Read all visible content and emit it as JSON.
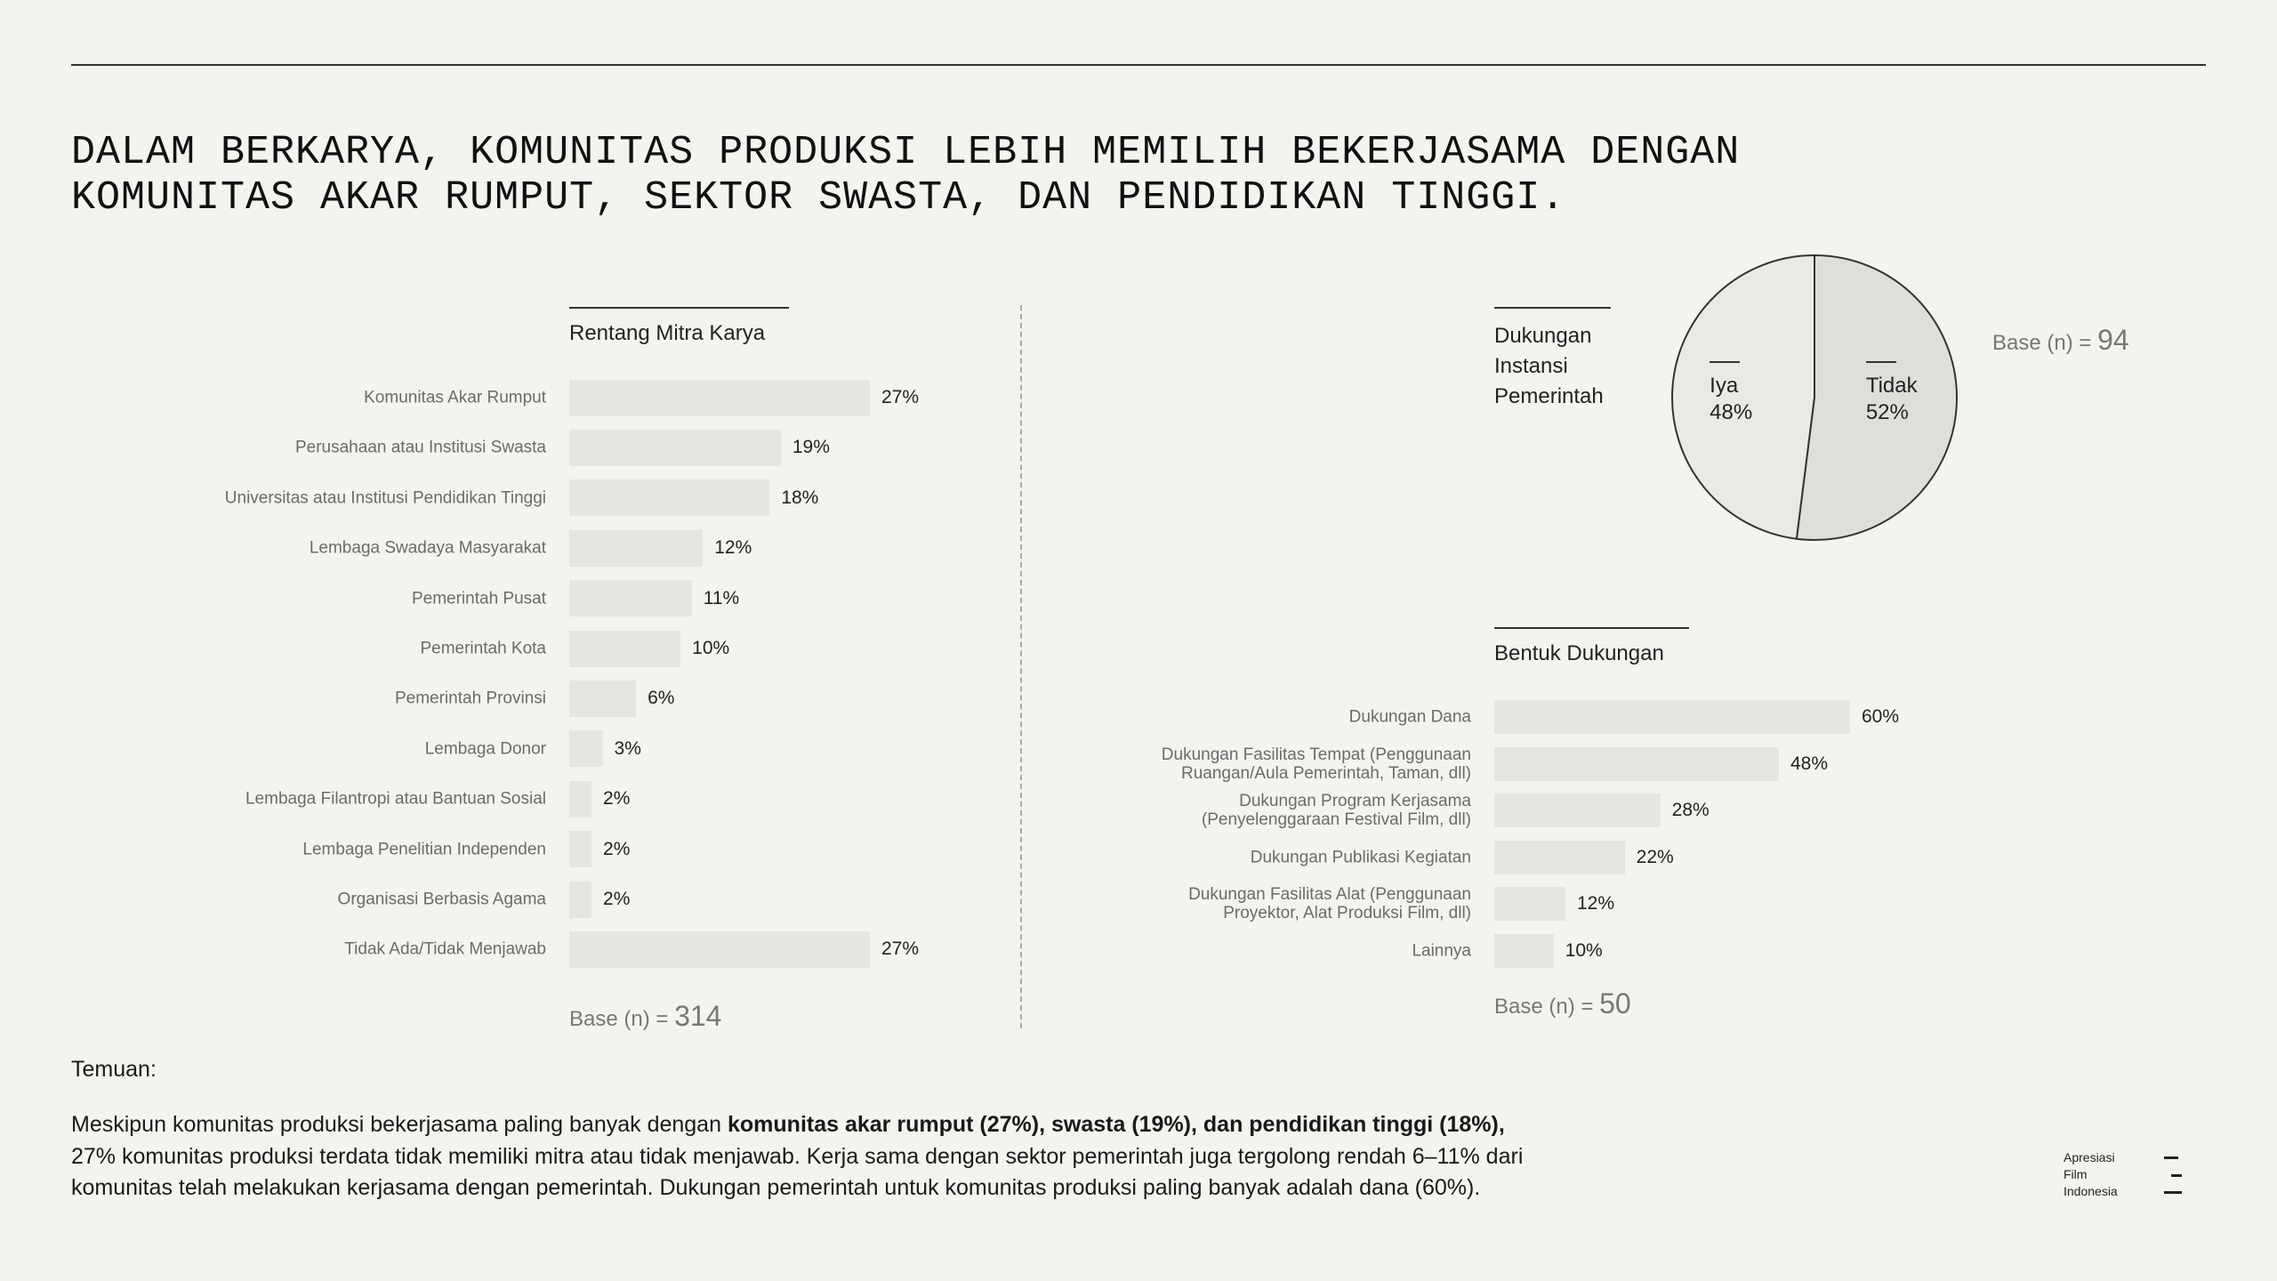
{
  "header": {
    "title": "DALAM BERKARYA, KOMUNITAS PRODUKSI LEBIH MEMILIH BEKERJASAMA DENGAN KOMUNITAS AKAR RUMPUT, SEKTOR SWASTA, DAN PENDIDIKAN TINGGI."
  },
  "chart_data": [
    {
      "type": "bar",
      "title": "Rentang Mitra Karya",
      "categories": [
        "Komunitas Akar Rumput",
        "Perusahaan atau Institusi Swasta",
        "Universitas atau Institusi Pendidikan Tinggi",
        "Lembaga Swadaya Masyarakat",
        "Pemerintah Pusat",
        "Pemerintah Kota",
        "Pemerintah Provinsi",
        "Lembaga Donor",
        "Lembaga Filantropi atau Bantuan Sosial",
        "Lembaga Penelitian Independen",
        "Organisasi Berbasis Agama",
        "Tidak Ada/Tidak Menjawab"
      ],
      "values": [
        27,
        19,
        18,
        12,
        11,
        10,
        6,
        3,
        2,
        2,
        2,
        27
      ],
      "value_labels": [
        "27%",
        "19%",
        "18%",
        "12%",
        "11%",
        "10%",
        "6%",
        "3%",
        "2%",
        "2%",
        "2%",
        "27%"
      ],
      "color": "#e5e5e1",
      "base_label": "Base (n) =",
      "base_n": 314
    },
    {
      "type": "pie",
      "title": "Dukungan Instansi Pemerintah",
      "categories": [
        "Iya",
        "Tidak"
      ],
      "values": [
        48,
        52
      ],
      "value_labels": [
        "48%",
        "52%"
      ],
      "colors": [
        "#e9e9e6",
        "#dededb"
      ],
      "base_label": "Base (n) =",
      "base_n": 94
    },
    {
      "type": "bar",
      "title": "Bentuk Dukungan",
      "categories": [
        "Dukungan Dana",
        "Dukungan Fasilitas Tempat (Penggunaan Ruangan/Aula Pemerintah, Taman, dll)",
        "Dukungan Program Kerjasama (Penyelenggaraan Festival Film, dll)",
        "Dukungan Publikasi Kegiatan",
        "Dukungan Fasilitas Alat (Penggunaan Proyektor, Alat Produksi Film, dll)",
        "Lainnya"
      ],
      "values": [
        60,
        48,
        28,
        22,
        12,
        10
      ],
      "value_labels": [
        "60%",
        "48%",
        "28%",
        "22%",
        "12%",
        "10%"
      ],
      "color": "#e5e5e1",
      "base_label": "Base (n) =",
      "base_n": 50
    }
  ],
  "findings": {
    "heading": "Temuan:",
    "lines": [
      {
        "text": "Meskipun komunitas produksi bekerjasama paling banyak dengan",
        "bold": "komunitas akar rumput (27%), swasta (19%), dan pendidikan tinggi (18%),"
      },
      {
        "text": "27% komunitas produksi terdata tidak memiliki mitra atau tidak menjawab. Kerja sama dengan sektor pemerintah juga tergolong rendah 6–11% dari"
      },
      {
        "text": "komunitas telah melakukan kerjasama dengan pemerintah. Dukungan pemerintah untuk komunitas produksi paling banyak adalah dana (60%)."
      }
    ]
  },
  "logo": {
    "lines": [
      "Apresiasi",
      "Film",
      "Indonesia"
    ]
  }
}
